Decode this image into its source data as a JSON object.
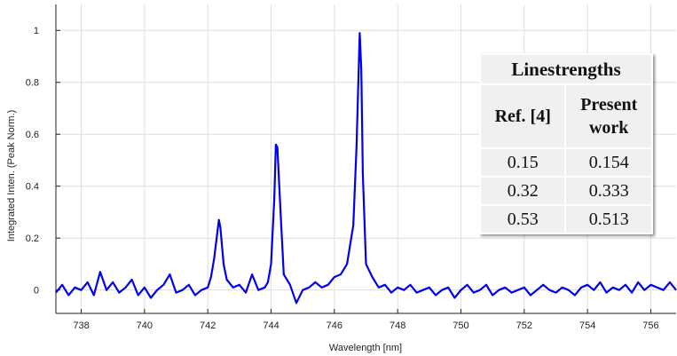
{
  "chart_data": {
    "type": "line",
    "title": "",
    "xlabel": "Wavelength [nm]",
    "ylabel": "Integrated Inten. (Peak Norm.)",
    "xlim": [
      737.2,
      756.8
    ],
    "ylim": [
      -0.09,
      1.1
    ],
    "xticks": [
      738,
      740,
      742,
      744,
      746,
      748,
      750,
      752,
      754,
      756
    ],
    "xtick_labels": [
      "738",
      "740",
      "742",
      "744",
      "746",
      "748",
      "750",
      "752",
      "754",
      "756"
    ],
    "yticks": [
      0,
      0.2,
      0.4,
      0.6,
      0.8,
      1
    ],
    "ytick_labels": [
      "0",
      "0.2",
      "0.4",
      "0.6",
      "0.8",
      "1"
    ],
    "grid": true,
    "line_color": "#0000ee",
    "series": [
      {
        "name": "",
        "x": [
          737.2,
          737.4,
          737.6,
          737.8,
          738.0,
          738.2,
          738.4,
          738.6,
          738.8,
          739.0,
          739.2,
          739.4,
          739.6,
          739.8,
          740.0,
          740.2,
          740.4,
          740.6,
          740.8,
          741.0,
          741.2,
          741.4,
          741.6,
          741.8,
          742.0,
          742.1,
          742.2,
          742.3,
          742.35,
          742.4,
          742.5,
          742.6,
          742.8,
          743.0,
          743.2,
          743.4,
          743.6,
          743.8,
          743.9,
          744.0,
          744.1,
          744.15,
          744.2,
          744.3,
          744.4,
          744.6,
          744.8,
          745.0,
          745.2,
          745.4,
          745.6,
          745.8,
          746.0,
          746.2,
          746.4,
          746.6,
          746.7,
          746.8,
          746.85,
          746.9,
          747.0,
          747.2,
          747.4,
          747.6,
          747.8,
          748.0,
          748.2,
          748.4,
          748.6,
          748.8,
          749.0,
          749.2,
          749.4,
          749.6,
          749.8,
          750.0,
          750.2,
          750.4,
          750.6,
          750.8,
          751.0,
          751.2,
          751.4,
          751.6,
          751.8,
          752.0,
          752.2,
          752.4,
          752.6,
          752.8,
          753.0,
          753.2,
          753.4,
          753.6,
          753.8,
          754.0,
          754.2,
          754.4,
          754.6,
          754.8,
          755.0,
          755.2,
          755.4,
          755.6,
          755.8,
          756.0,
          756.2,
          756.4,
          756.6,
          756.8
        ],
        "y": [
          -0.01,
          0.02,
          -0.02,
          0.01,
          0.0,
          0.03,
          -0.02,
          0.07,
          0.0,
          0.03,
          -0.01,
          0.01,
          0.04,
          -0.02,
          0.01,
          -0.03,
          0.0,
          0.02,
          0.06,
          -0.01,
          0.0,
          0.02,
          -0.02,
          0.0,
          0.01,
          0.05,
          0.12,
          0.22,
          0.27,
          0.24,
          0.1,
          0.04,
          0.01,
          0.02,
          -0.01,
          0.06,
          0.0,
          0.01,
          0.03,
          0.1,
          0.35,
          0.56,
          0.55,
          0.3,
          0.06,
          0.02,
          -0.05,
          0.0,
          0.01,
          0.03,
          0.01,
          0.02,
          0.05,
          0.06,
          0.1,
          0.25,
          0.55,
          0.99,
          0.85,
          0.45,
          0.1,
          0.05,
          0.01,
          0.02,
          -0.01,
          0.01,
          0.0,
          0.02,
          -0.01,
          0.0,
          0.01,
          -0.02,
          0.0,
          0.01,
          -0.03,
          0.0,
          0.02,
          -0.01,
          0.0,
          0.02,
          -0.02,
          0.0,
          0.01,
          -0.01,
          0.0,
          0.01,
          -0.02,
          0.0,
          0.02,
          0.0,
          -0.01,
          0.01,
          0.0,
          -0.02,
          0.01,
          0.02,
          0.0,
          0.03,
          -0.01,
          0.01,
          0.0,
          0.02,
          -0.01,
          0.03,
          0.0,
          0.02,
          0.01,
          0.0,
          0.03,
          0.0
        ]
      }
    ]
  },
  "inset_table": {
    "title": "Linestrengths",
    "headers": [
      "Ref. [4]",
      "Present work"
    ],
    "header_col2_line1": "Present",
    "header_col2_line2": "work",
    "rows": [
      [
        "0.15",
        "0.154"
      ],
      [
        "0.32",
        "0.333"
      ],
      [
        "0.53",
        "0.513"
      ]
    ]
  }
}
